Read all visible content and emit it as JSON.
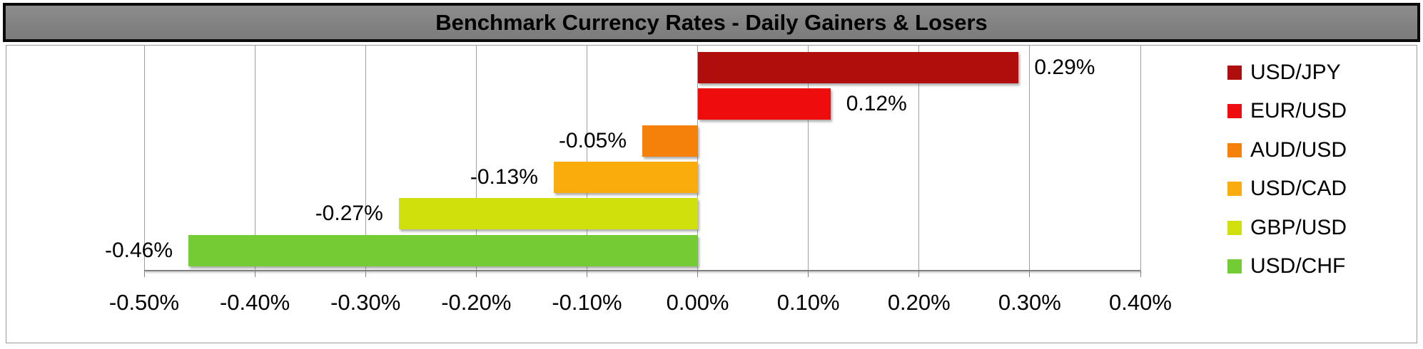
{
  "title": "Benchmark Currency Rates - Daily Gainers & Losers",
  "chart_data": {
    "type": "bar",
    "orientation": "horizontal",
    "title": "Benchmark Currency Rates - Daily Gainers & Losers",
    "categories": [
      "USD/JPY",
      "EUR/USD",
      "AUD/USD",
      "USD/CAD",
      "GBP/USD",
      "USD/CHF"
    ],
    "values": [
      0.29,
      0.12,
      -0.05,
      -0.13,
      -0.27,
      -0.46
    ],
    "value_labels": [
      "0.29%",
      "0.12%",
      "-0.05%",
      "-0.13%",
      "-0.27%",
      "-0.46%"
    ],
    "bar_colors": [
      "#B00D0D",
      "#EE0C0C",
      "#F5800A",
      "#F9AC0B",
      "#CFE00D",
      "#74CC35"
    ],
    "xlabel": "",
    "ylabel": "",
    "xlim": [
      -0.5,
      0.4
    ],
    "tick_step": 0.1,
    "x_tick_labels": [
      "-0.50%",
      "-0.40%",
      "-0.30%",
      "-0.20%",
      "-0.10%",
      "0.00%",
      "0.10%",
      "0.20%",
      "0.30%",
      "0.40%"
    ],
    "grid": true,
    "label_position": "outside-end",
    "legend": {
      "position": "right",
      "entries": [
        {
          "label": "USD/JPY",
          "color": "#B00D0D"
        },
        {
          "label": "EUR/USD",
          "color": "#EE0C0C"
        },
        {
          "label": "AUD/USD",
          "color": "#F5800A"
        },
        {
          "label": "USD/CAD",
          "color": "#F9AC0B"
        },
        {
          "label": "GBP/USD",
          "color": "#CFE00D"
        },
        {
          "label": "USD/CHF",
          "color": "#74CC35"
        }
      ]
    }
  },
  "colors": {
    "banner_background": "#828282",
    "banner_border": "#0A0A0A",
    "title_text": "#000000",
    "gridline": "#A0A0A0",
    "axis_line": "#808080",
    "frame_border": "#9A9A9A",
    "background": "#FFFFFF",
    "label_text": "#000000"
  }
}
